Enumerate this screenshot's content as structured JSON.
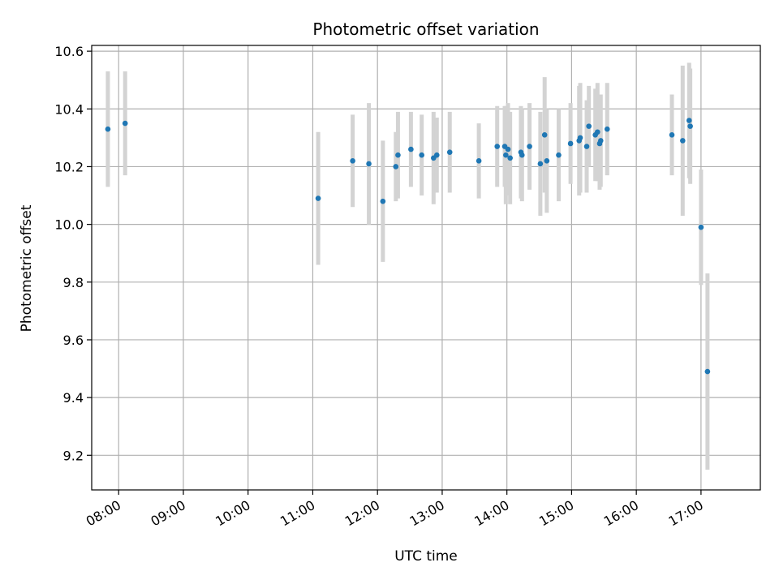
{
  "chart_data": {
    "type": "scatter",
    "title": "Photometric offset variation",
    "xlabel": "UTC time",
    "ylabel": "Photometric offset",
    "grid": true,
    "xlim": [
      "07:35",
      "17:55"
    ],
    "ylim": [
      9.08,
      10.62
    ],
    "x_ticks": [
      "08:00",
      "09:00",
      "10:00",
      "11:00",
      "12:00",
      "13:00",
      "14:00",
      "15:00",
      "16:00",
      "17:00"
    ],
    "y_ticks": [
      "9.2",
      "9.4",
      "9.6",
      "9.8",
      "10.0",
      "10.2",
      "10.4",
      "10.6"
    ],
    "colors": {
      "point": "#1f77b4",
      "errorbar": "#d3d3d3"
    },
    "series": [
      {
        "x": [
          "07:50",
          "08:06",
          "11:05",
          "11:37",
          "11:52",
          "12:05",
          "12:17",
          "12:19",
          "12:31",
          "12:41",
          "12:52",
          "12:55",
          "13:07",
          "13:34",
          "13:51",
          "13:58",
          "13:59",
          "14:01",
          "14:03",
          "14:13",
          "14:14",
          "14:21",
          "14:31",
          "14:35",
          "14:37",
          "14:48",
          "14:59",
          "15:07",
          "15:08",
          "15:14",
          "15:16",
          "15:22",
          "15:24",
          "15:26",
          "15:27",
          "15:33",
          "16:33",
          "16:43",
          "16:49",
          "16:50",
          "17:00",
          "17:06"
        ],
        "y": [
          10.33,
          10.35,
          10.09,
          10.22,
          10.21,
          10.08,
          10.2,
          10.24,
          10.26,
          10.24,
          10.23,
          10.24,
          10.25,
          10.22,
          10.27,
          10.27,
          10.24,
          10.26,
          10.23,
          10.25,
          10.24,
          10.27,
          10.21,
          10.31,
          10.22,
          10.24,
          10.28,
          10.29,
          10.3,
          10.27,
          10.34,
          10.31,
          10.32,
          10.28,
          10.29,
          10.33,
          10.31,
          10.29,
          10.36,
          10.34,
          9.99,
          9.49
        ],
        "yerr": [
          0.2,
          0.18,
          0.23,
          0.16,
          0.21,
          0.21,
          0.12,
          0.15,
          0.13,
          0.14,
          0.16,
          0.13,
          0.14,
          0.13,
          0.14,
          0.14,
          0.17,
          0.16,
          0.16,
          0.16,
          0.16,
          0.15,
          0.18,
          0.2,
          0.18,
          0.16,
          0.14,
          0.19,
          0.19,
          0.16,
          0.14,
          0.16,
          0.17,
          0.16,
          0.16,
          0.16,
          0.14,
          0.26,
          0.2,
          0.2,
          0.2,
          0.34
        ]
      }
    ]
  }
}
